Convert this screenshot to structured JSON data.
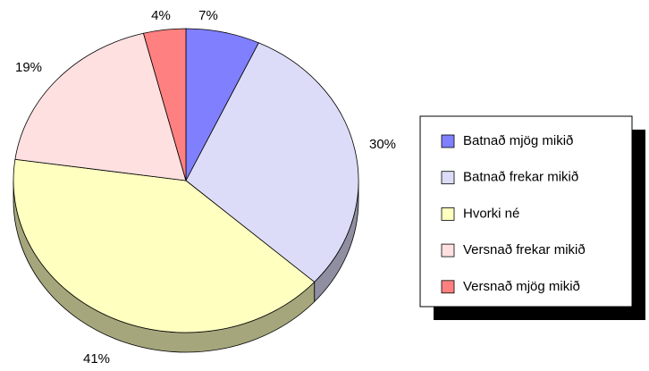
{
  "chart_data": {
    "type": "pie",
    "categories": [
      "Batnað mjög mikið",
      "Batnað frekar mikið",
      "Hvorki né",
      "Versnað frekar mikið",
      "Versnað mjög mikið"
    ],
    "values": [
      7,
      30,
      41,
      19,
      4
    ],
    "value_labels": [
      "7%",
      "30%",
      "41%",
      "19%",
      "4%"
    ],
    "colors": [
      "#8080ff",
      "#dcdcf8",
      "#ffffc0",
      "#ffe0e0",
      "#ff8080"
    ],
    "legend": "right"
  }
}
